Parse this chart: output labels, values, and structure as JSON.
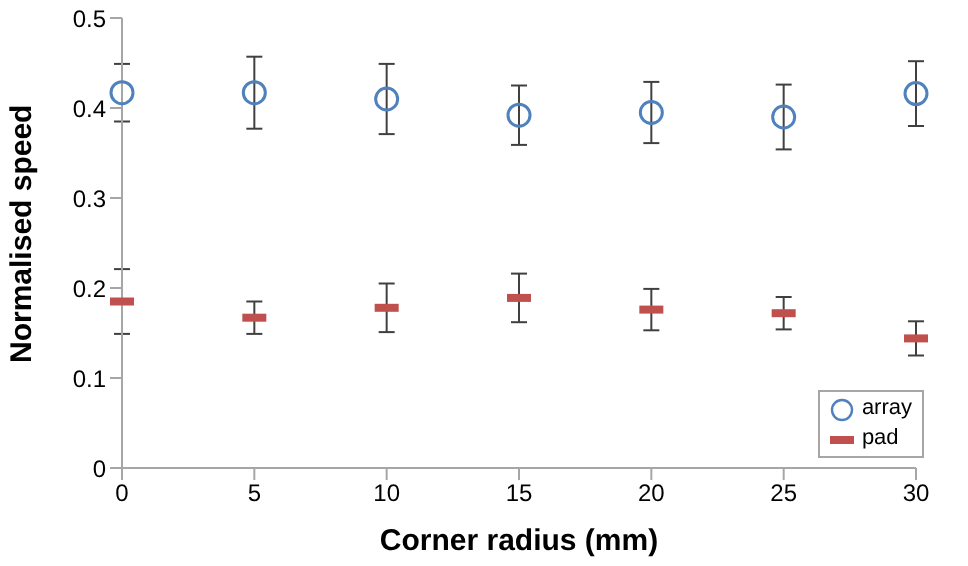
{
  "chart_data": {
    "type": "scatter",
    "xlabel": "Corner radius (mm)",
    "ylabel": "Normalised speed",
    "x": [
      0,
      5,
      10,
      15,
      20,
      25,
      30
    ],
    "series": [
      {
        "name": "array",
        "color": "#4f81bd",
        "marker": "circle",
        "values": [
          0.417,
          0.417,
          0.41,
          0.392,
          0.395,
          0.39,
          0.416
        ],
        "errors": [
          0.032,
          0.04,
          0.039,
          0.033,
          0.034,
          0.036,
          0.036
        ]
      },
      {
        "name": "pad",
        "color": "#c0504d",
        "marker": "square",
        "values": [
          0.185,
          0.167,
          0.178,
          0.189,
          0.176,
          0.172,
          0.144
        ],
        "errors": [
          0.036,
          0.018,
          0.027,
          0.027,
          0.023,
          0.018,
          0.019
        ]
      }
    ],
    "xlim": [
      0,
      30
    ],
    "xticks": [
      0,
      5,
      10,
      15,
      20,
      25,
      30
    ],
    "ylim": [
      0,
      0.5
    ],
    "yticks": [
      0,
      0.1,
      0.2,
      0.3,
      0.4,
      0.5
    ],
    "grid": false,
    "legend": "bottom right"
  }
}
